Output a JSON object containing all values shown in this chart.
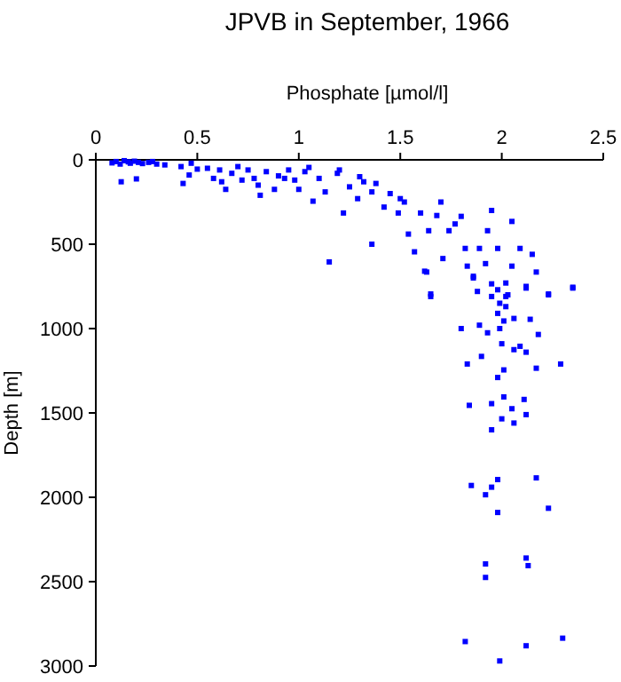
{
  "chart_data": {
    "type": "scatter",
    "title": "JPVB in September, 1966",
    "xlabel": "Phosphate [µmol/l]",
    "ylabel": "Depth [m]",
    "xlim": [
      0,
      2.5
    ],
    "xticks": [
      0,
      0.5,
      1,
      1.5,
      2,
      2.5
    ],
    "ylim": [
      3000,
      0
    ],
    "yticks": [
      0,
      500,
      1000,
      1500,
      2000,
      2500,
      3000
    ],
    "grid": false,
    "marker": "square",
    "series": [
      {
        "color": "#0000ff",
        "x": [
          0.08,
          0.1,
          0.12,
          0.14,
          0.16,
          0.17,
          0.19,
          0.21,
          0.23,
          0.26,
          0.28,
          0.3,
          0.34,
          0.125,
          0.2,
          0.42,
          0.43,
          0.47,
          0.46,
          0.5,
          0.58,
          0.61,
          0.64,
          0.67,
          0.72,
          0.75,
          0.78,
          0.81,
          0.84,
          0.88,
          0.93,
          0.95,
          1.0,
          1.03,
          1.07,
          1.1,
          1.13,
          1.15,
          1.19,
          1.22,
          1.25,
          1.29,
          1.32,
          1.36,
          1.38,
          1.36,
          1.42,
          1.45,
          1.49,
          1.52,
          1.54,
          1.57,
          1.6,
          1.63,
          1.64,
          1.65,
          1.7,
          1.71,
          1.74,
          1.8,
          1.82,
          1.83,
          1.86,
          1.89,
          1.92,
          1.93,
          1.95,
          1.95,
          1.98,
          2.02,
          2.05,
          2.05,
          2.09,
          2.12,
          2.15,
          2.17,
          2.23,
          2.35,
          1.62,
          1.65,
          1.8,
          1.83,
          1.84,
          1.86,
          1.88,
          1.89,
          1.9,
          1.93,
          1.95,
          1.95,
          1.95,
          1.98,
          1.98,
          1.98,
          1.99,
          1.99,
          2.0,
          2.01,
          2.01,
          2.01,
          2.0,
          2.02,
          2.02,
          2.03,
          2.05,
          2.06,
          2.06,
          2.06,
          2.09,
          2.11,
          2.12,
          2.12,
          2.12,
          2.14,
          2.17,
          2.18,
          2.23,
          2.29,
          2.35,
          1.85,
          1.92,
          1.95,
          1.98,
          2.17,
          1.98,
          2.23,
          1.92,
          2.12,
          2.13,
          1.92,
          1.82,
          2.12,
          2.3,
          1.99,
          0.55,
          0.7,
          0.9,
          1.05,
          1.2,
          0.62,
          0.8,
          0.98,
          1.3,
          1.5,
          1.68,
          1.77
        ],
        "values": [
          18,
          10,
          25,
          5,
          12,
          20,
          8,
          15,
          22,
          15,
          10,
          25,
          30,
          130,
          113,
          40,
          140,
          20,
          90,
          55,
          110,
          60,
          175,
          80,
          120,
          60,
          110,
          210,
          70,
          175,
          110,
          60,
          175,
          70,
          245,
          110,
          190,
          605,
          80,
          315,
          160,
          230,
          130,
          190,
          140,
          500,
          280,
          200,
          315,
          250,
          440,
          545,
          315,
          665,
          420,
          810,
          250,
          585,
          420,
          335,
          525,
          630,
          700,
          525,
          615,
          420,
          300,
          735,
          525,
          810,
          365,
          630,
          525,
          750,
          560,
          665,
          800,
          755,
          660,
          795,
          1000,
          1210,
          1455,
          690,
          780,
          980,
          1165,
          1025,
          810,
          1445,
          1600,
          770,
          910,
          1290,
          1000,
          850,
          1090,
          955,
          1245,
          1405,
          1535,
          870,
          730,
          800,
          1475,
          1125,
          1560,
          940,
          1105,
          1420,
          1140,
          1510,
          760,
          945,
          1235,
          1035,
          795,
          1210,
          760,
          1930,
          1985,
          1940,
          1895,
          1885,
          2090,
          2065,
          2395,
          2360,
          2405,
          2475,
          2855,
          2880,
          2835,
          2970,
          50,
          40,
          95,
          45,
          60,
          130,
          150,
          120,
          100,
          230,
          330,
          380
        ]
      }
    ]
  }
}
